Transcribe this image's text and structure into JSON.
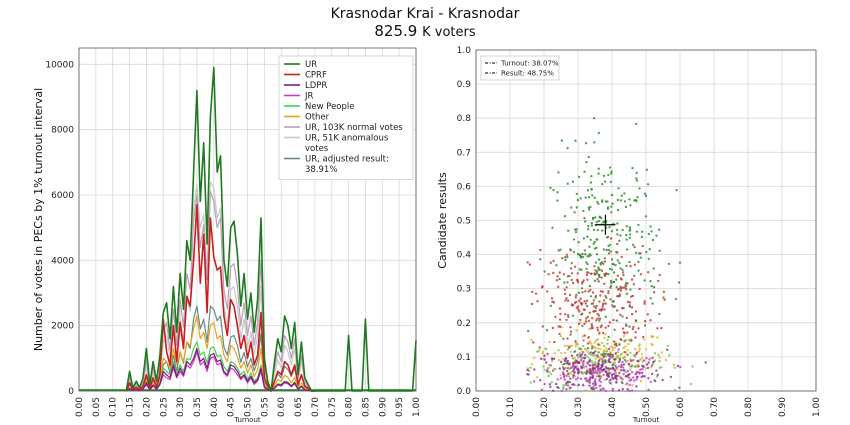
{
  "header": {
    "title": "Krasnodar Krai - Krasnodar",
    "voters_number": "825.9",
    "voters_unit": "K voters"
  },
  "chart_data": [
    {
      "type": "line",
      "xlabel": "Turnout",
      "ylabel": "Number of votes in PECs by 1% turnout interval",
      "xlim": [
        0,
        1
      ],
      "ylim": [
        0,
        10500
      ],
      "xticks": [
        "0.00",
        "0.05",
        "0.10",
        "0.15",
        "0.20",
        "0.25",
        "0.30",
        "0.35",
        "0.40",
        "0.45",
        "0.50",
        "0.55",
        "0.60",
        "0.65",
        "0.70",
        "0.75",
        "0.80",
        "0.85",
        "0.90",
        "0.95",
        "1.00"
      ],
      "yticks": [
        "0",
        "2000",
        "4000",
        "6000",
        "8000",
        "10000"
      ],
      "grid": true,
      "legend_position": "top-right",
      "x": [
        0.14,
        0.15,
        0.16,
        0.17,
        0.18,
        0.19,
        0.2,
        0.21,
        0.22,
        0.23,
        0.24,
        0.25,
        0.26,
        0.27,
        0.28,
        0.29,
        0.3,
        0.31,
        0.32,
        0.33,
        0.34,
        0.35,
        0.36,
        0.37,
        0.38,
        0.39,
        0.4,
        0.41,
        0.42,
        0.43,
        0.44,
        0.45,
        0.46,
        0.47,
        0.48,
        0.49,
        0.5,
        0.51,
        0.52,
        0.53,
        0.54,
        0.55,
        0.56,
        0.57,
        0.58,
        0.59,
        0.6,
        0.61,
        0.62,
        0.63,
        0.64,
        0.65,
        0.66,
        0.67,
        0.68,
        0.69,
        0.7
      ],
      "series": [
        {
          "name": "UR",
          "color": "#1e7a1e",
          "values": [
            0,
            600,
            100,
            300,
            100,
            400,
            1300,
            200,
            900,
            300,
            1100,
            2400,
            2700,
            1600,
            3200,
            1800,
            3600,
            2500,
            4600,
            4000,
            6700,
            9200,
            5800,
            7600,
            4500,
            8400,
            9900,
            6700,
            7200,
            4000,
            3200,
            5000,
            5200,
            4200,
            2600,
            3600,
            2200,
            3000,
            1800,
            2800,
            5300,
            1000,
            300,
            0,
            900,
            1600,
            1200,
            2300,
            2000,
            1300,
            2100,
            500,
            1500,
            400,
            200,
            0,
            0
          ],
          "extra": [
            [
              0.79,
              0
            ],
            [
              0.8,
              1700
            ],
            [
              0.81,
              0
            ],
            [
              0.84,
              0
            ],
            [
              0.85,
              2200
            ],
            [
              0.86,
              0
            ],
            [
              0.99,
              0
            ],
            [
              1.0,
              1550
            ]
          ]
        },
        {
          "name": "CPRF",
          "color": "#c8201e",
          "values": [
            0,
            250,
            50,
            120,
            30,
            150,
            500,
            80,
            400,
            120,
            500,
            2200,
            1200,
            800,
            2000,
            900,
            2100,
            1300,
            2900,
            2600,
            4000,
            5700,
            3300,
            4800,
            2400,
            5300,
            4100,
            3700,
            3800,
            2300,
            1700,
            2800,
            2600,
            2000,
            1300,
            1700,
            1000,
            1500,
            800,
            1100,
            2400,
            400,
            150,
            0,
            300,
            600,
            500,
            900,
            800,
            500,
            800,
            200,
            500,
            150,
            80,
            0,
            0
          ]
        },
        {
          "name": "LDPR",
          "color": "#7a1e7a",
          "values": [
            0,
            80,
            20,
            50,
            10,
            60,
            250,
            40,
            180,
            60,
            220,
            600,
            500,
            400,
            800,
            450,
            700,
            500,
            900,
            800,
            1000,
            1300,
            900,
            1000,
            700,
            1100,
            1150,
            900,
            950,
            600,
            500,
            800,
            750,
            600,
            400,
            500,
            300,
            450,
            250,
            350,
            700,
            120,
            50,
            0,
            100,
            200,
            180,
            280,
            250,
            150,
            250,
            60,
            150,
            40,
            20,
            0,
            0
          ]
        },
        {
          "name": "JR",
          "color": "#cc33cc",
          "values": [
            0,
            60,
            15,
            40,
            10,
            50,
            200,
            30,
            150,
            50,
            180,
            500,
            400,
            350,
            700,
            400,
            600,
            450,
            800,
            700,
            900,
            1200,
            800,
            900,
            600,
            1000,
            1050,
            800,
            850,
            550,
            450,
            700,
            650,
            500,
            350,
            450,
            250,
            400,
            200,
            300,
            600,
            100,
            40,
            0,
            80,
            180,
            150,
            250,
            220,
            130,
            220,
            50,
            130,
            30,
            15,
            0,
            0
          ]
        },
        {
          "name": "New People",
          "color": "#4ccc4c",
          "values": [
            0,
            70,
            20,
            50,
            10,
            60,
            300,
            40,
            200,
            70,
            250,
            700,
            600,
            500,
            900,
            550,
            800,
            600,
            1000,
            950,
            1300,
            1500,
            1100,
            1200,
            850,
            1300,
            1350,
            1050,
            1100,
            750,
            600,
            900,
            850,
            700,
            500,
            600,
            350,
            550,
            300,
            400,
            800,
            150,
            60,
            0,
            120,
            220,
            200,
            300,
            280,
            160,
            280,
            70,
            160,
            50,
            20,
            0,
            0
          ]
        },
        {
          "name": "Other",
          "color": "#e8a21a",
          "values": [
            0,
            100,
            30,
            70,
            20,
            80,
            400,
            60,
            300,
            100,
            350,
            1000,
            900,
            700,
            1300,
            800,
            1200,
            900,
            1500,
            1400,
            1900,
            2300,
            1600,
            1800,
            1300,
            2000,
            2100,
            1600,
            1700,
            1100,
            900,
            1400,
            1300,
            1050,
            700,
            900,
            550,
            800,
            450,
            650,
            1300,
            220,
            90,
            0,
            180,
            350,
            300,
            480,
            420,
            250,
            420,
            110,
            250,
            70,
            30,
            0,
            0
          ]
        },
        {
          "name": "UR, 103K normal votes",
          "color": "#b8a0b8",
          "values": [
            0,
            450,
            80,
            230,
            80,
            300,
            1000,
            160,
            700,
            230,
            850,
            1800,
            2100,
            1250,
            2500,
            1400,
            2800,
            1950,
            3600,
            3100,
            5200,
            6000,
            4400,
            5100,
            3400,
            6100,
            5800,
            5000,
            5300,
            3100,
            2500,
            3800,
            3900,
            3200,
            2000,
            2700,
            1700,
            2300,
            1400,
            2100,
            4000,
            750,
            230,
            0,
            700,
            1200,
            900,
            1700,
            1500,
            1000,
            1600,
            380,
            1100,
            300,
            150,
            0,
            0
          ]
        },
        {
          "name": "UR, 51K anomalous votes",
          "color": "#c8c8c8",
          "values": [
            0,
            350,
            60,
            180,
            60,
            230,
            800,
            120,
            550,
            180,
            650,
            1500,
            1700,
            1000,
            2000,
            1100,
            2200,
            1550,
            2800,
            2450,
            5600,
            6300,
            5000,
            5400,
            3600,
            6400,
            6200,
            5300,
            5600,
            2600,
            2000,
            3100,
            3200,
            2600,
            1600,
            2200,
            1350,
            1800,
            1100,
            1700,
            3200,
            600,
            180,
            0,
            550,
            950,
            700,
            1400,
            1200,
            800,
            1300,
            300,
            900,
            240,
            120,
            0,
            0
          ]
        },
        {
          "name": "UR, adjusted result: 38.91%",
          "color": "#6a8a8a",
          "values": [
            0,
            200,
            40,
            100,
            40,
            130,
            450,
            70,
            300,
            100,
            380,
            800,
            900,
            550,
            1100,
            600,
            1200,
            850,
            1500,
            1300,
            2200,
            2600,
            1900,
            2200,
            1500,
            2600,
            2500,
            2150,
            2300,
            1350,
            1100,
            1650,
            1700,
            1400,
            880,
            1180,
            740,
            1000,
            620,
            920,
            1750,
            330,
            100,
            0,
            300,
            520,
            400,
            750,
            660,
            440,
            700,
            160,
            480,
            130,
            60,
            0,
            0
          ]
        }
      ]
    },
    {
      "type": "scatter",
      "xlabel": "Turnout",
      "ylabel": "Candidate results",
      "xlim": [
        0,
        1
      ],
      "ylim": [
        0,
        1
      ],
      "xticks": [
        "0.00",
        "0.10",
        "0.20",
        "0.30",
        "0.40",
        "0.50",
        "0.60",
        "0.70",
        "0.80",
        "0.90",
        "1.00"
      ],
      "yticks": [
        "0.0",
        "0.1",
        "0.2",
        "0.3",
        "0.4",
        "0.5",
        "0.6",
        "0.7",
        "0.8",
        "0.9",
        "1.0"
      ],
      "grid": true,
      "legend_position": "top-left",
      "legend": [
        "Turnout: 38.07%",
        "Result: 48.75%"
      ],
      "marker": {
        "x": 0.3807,
        "y": 0.4875
      },
      "clusters": [
        {
          "name": "UR",
          "color": "#2a8a2a",
          "cx": 0.38,
          "cy": 0.42,
          "sx": 0.08,
          "sy": 0.14,
          "n": 320
        },
        {
          "name": "CPRF",
          "color": "#c83030",
          "cx": 0.34,
          "cy": 0.26,
          "sx": 0.09,
          "sy": 0.08,
          "n": 260
        },
        {
          "name": "LDPR",
          "color": "#8a2a8a",
          "cx": 0.36,
          "cy": 0.06,
          "sx": 0.1,
          "sy": 0.03,
          "n": 180
        },
        {
          "name": "JR",
          "color": "#cc33cc",
          "cx": 0.36,
          "cy": 0.05,
          "sx": 0.1,
          "sy": 0.03,
          "n": 160
        },
        {
          "name": "New People",
          "color": "#66cc44",
          "cx": 0.36,
          "cy": 0.08,
          "sx": 0.1,
          "sy": 0.03,
          "n": 160
        },
        {
          "name": "Other",
          "color": "#e8b020",
          "cx": 0.37,
          "cy": 0.1,
          "sx": 0.1,
          "sy": 0.04,
          "n": 180
        }
      ]
    }
  ]
}
